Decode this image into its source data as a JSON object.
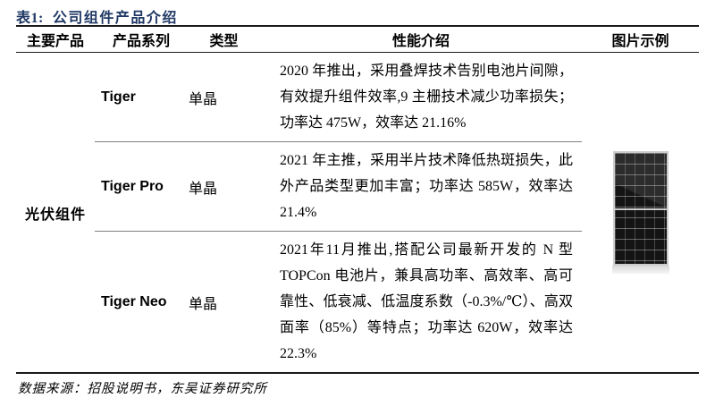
{
  "page": {
    "title_prefix": "表1:",
    "title": "公司组件产品介绍",
    "footer": "数据来源：招股说明书，东吴证券研究所"
  },
  "table": {
    "headers": [
      "主要产品",
      "产品系列",
      "类型",
      "性能介绍",
      "图片示例"
    ],
    "main_product": "光伏组件",
    "rows": [
      {
        "series": "Tiger",
        "type": "单晶",
        "performance": "2020 年推出，采用叠焊技术告别电池片间隙，有效提升组件效率,9 主栅技术减少功率损失；功率达 475W，效率达 21.16%"
      },
      {
        "series": "Tiger Pro",
        "type": "单晶",
        "performance": "2021 年主推，采用半片技术降低热斑损失，此外产品类型更加丰富；功率达 585W，效率达 21.4%"
      },
      {
        "series": "Tiger Neo",
        "type": "单晶",
        "performance": "2021年11月推出,搭配公司最新开发的 N 型 TOPCon 电池片，兼具高功率、高效率、高可靠性、低衰减、低温度系数（-0.3%/℃）、高双面率（85%）等特点；功率达 620W，效率达 22.3%"
      }
    ],
    "image": {
      "name": "solar-panel-photo"
    }
  },
  "colors": {
    "title": "#1F3864",
    "border_dark": "#1a1a1a",
    "separator": "#7f7f7f",
    "panel_body": "#141414",
    "panel_frame": "#cccccc"
  }
}
